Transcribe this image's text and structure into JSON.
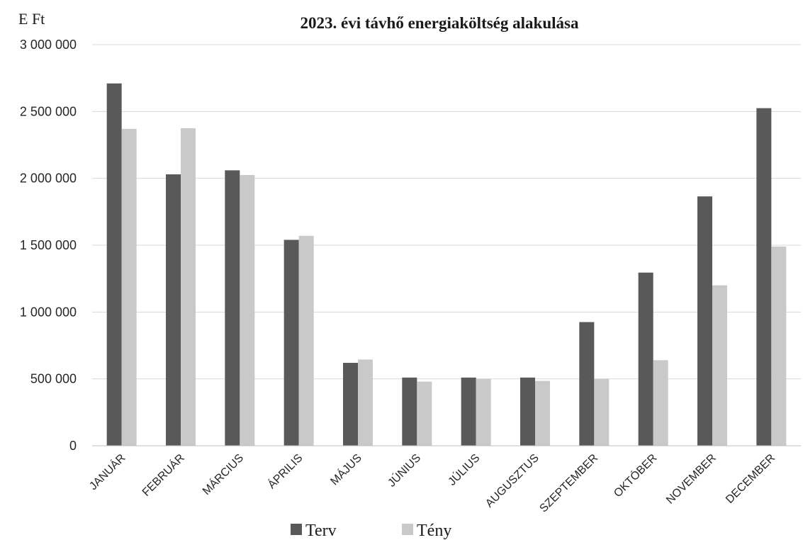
{
  "chart_data": {
    "type": "bar",
    "title": "2023. évi távhő energiaköltség alakulása",
    "ylabel": "E Ft",
    "xlabel": "",
    "ylim": [
      0,
      3000000
    ],
    "yticks": [
      0,
      500000,
      1000000,
      1500000,
      2000000,
      2500000,
      3000000
    ],
    "ytick_labels": [
      "0",
      "500 000",
      "1 000 000",
      "1 500 000",
      "2 000 000",
      "2 500 000",
      "3 000 000"
    ],
    "categories": [
      "JANUÁR",
      "FEBRUÁR",
      "MÁRCIUS",
      "ÁPRILIS",
      "MÁJUS",
      "JÚNIUS",
      "JÚLIUS",
      "AUGUSZTUS",
      "SZEPTEMBER",
      "OKTÓBER",
      "NOVEMBER",
      "DECEMBER"
    ],
    "series": [
      {
        "name": "Terv",
        "color": "#595959",
        "values": [
          2710000,
          2030000,
          2060000,
          1540000,
          620000,
          510000,
          510000,
          510000,
          925000,
          1295000,
          1865000,
          2525000
        ]
      },
      {
        "name": "Tény",
        "color": "#c9c9c9",
        "values": [
          2370000,
          2375000,
          2025000,
          1570000,
          645000,
          480000,
          500000,
          485000,
          500000,
          640000,
          1200000,
          1490000
        ]
      }
    ],
    "grid": true,
    "legend_position": "bottom"
  }
}
